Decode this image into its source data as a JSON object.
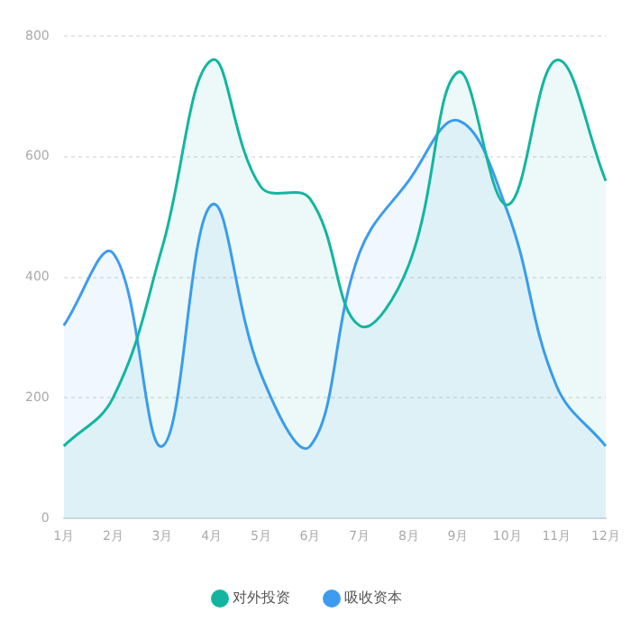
{
  "chart_data": {
    "type": "area",
    "categories": [
      "1月",
      "2月",
      "3月",
      "4月",
      "5月",
      "6月",
      "7月",
      "8月",
      "9月",
      "10月",
      "11月",
      "12月"
    ],
    "series": [
      {
        "name": "对外投资",
        "color": "#13b5a0",
        "values": [
          120,
          200,
          450,
          760,
          550,
          530,
          320,
          420,
          740,
          520,
          760,
          560
        ]
      },
      {
        "name": "吸收资本",
        "color": "#3e9bf0",
        "values": [
          320,
          440,
          120,
          520,
          240,
          120,
          440,
          560,
          660,
          510,
          220,
          120
        ]
      }
    ],
    "ylim": [
      0,
      800
    ],
    "yticks": [
      0,
      200,
      400,
      600,
      800
    ],
    "grid": "y",
    "legend": "bottom",
    "marker": "none"
  }
}
